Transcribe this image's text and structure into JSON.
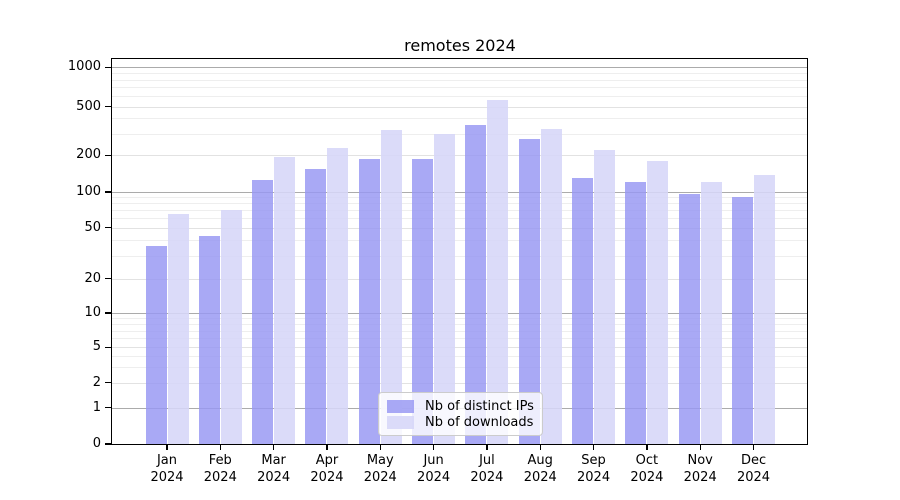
{
  "title": "remotes 2024",
  "chart_data": {
    "type": "bar",
    "title": "remotes 2024",
    "categories": [
      "Jan 2024",
      "Feb 2024",
      "Mar 2024",
      "Apr 2024",
      "May 2024",
      "Jun 2024",
      "Jul 2024",
      "Aug 2024",
      "Sep 2024",
      "Oct 2024",
      "Nov 2024",
      "Dec 2024"
    ],
    "months": [
      "Jan",
      "Feb",
      "Mar",
      "Apr",
      "May",
      "Jun",
      "Jul",
      "Aug",
      "Sep",
      "Oct",
      "Nov",
      "Dec"
    ],
    "year": "2024",
    "series": [
      {
        "name": "Nb of distinct IPs",
        "fill": "#9797f3",
        "alpha": 0.83,
        "values": [
          36,
          43,
          125,
          155,
          185,
          185,
          355,
          270,
          130,
          120,
          96,
          91
        ]
      },
      {
        "name": "Nb of downloads",
        "fill": "#d6d6f8",
        "alpha": 0.88,
        "values": [
          65,
          70,
          195,
          230,
          320,
          300,
          560,
          325,
          220,
          180,
          120,
          138
        ]
      }
    ],
    "xlabel": "",
    "ylabel": "",
    "yscale": "symlog",
    "y_tick_labels": [
      "0",
      "1",
      "2",
      "5",
      "10",
      "20",
      "50",
      "100",
      "200",
      "500",
      "1000"
    ],
    "y_ticks": [
      0,
      1,
      2,
      5,
      10,
      20,
      50,
      100,
      200,
      500,
      1000
    ],
    "ylim": [
      0,
      1170
    ],
    "grid": true,
    "legend": {
      "position": "lower center",
      "labels": [
        "Nb of distinct IPs",
        "Nb of downloads"
      ]
    }
  }
}
